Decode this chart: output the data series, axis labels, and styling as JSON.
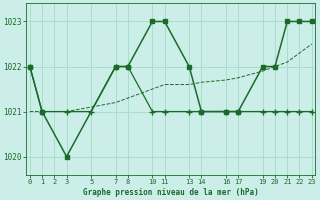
{
  "title": "Graphe pression niveau de la mer (hPa)",
  "background_color": "#cceee8",
  "grid_color": "#aaddcc",
  "line_color": "#1a6b2a",
  "ylim": [
    1019.6,
    1023.4
  ],
  "yticks": [
    1020,
    1021,
    1022,
    1023
  ],
  "xlim": [
    -0.3,
    23.3
  ],
  "xtick_positions": [
    0,
    1,
    2,
    3,
    5,
    7,
    8,
    10,
    11,
    13,
    14,
    16,
    17,
    19,
    20,
    21,
    22,
    23
  ],
  "xtick_labels": [
    "0",
    "1",
    "2",
    "3",
    "5",
    "7",
    "8",
    "10",
    "11",
    "13",
    "14",
    "16",
    "17",
    "19",
    "20",
    "21",
    "22",
    "23"
  ],
  "series1_x": [
    0,
    1,
    3,
    7,
    8,
    10,
    11,
    13,
    14,
    16,
    17,
    19,
    20,
    21,
    22,
    23
  ],
  "series1_y": [
    1022,
    1021,
    1020,
    1022,
    1022,
    1023,
    1023,
    1022,
    1021,
    1021,
    1021,
    1022,
    1022,
    1023,
    1023,
    1023
  ],
  "series2_x": [
    0,
    1,
    3,
    5,
    7,
    8,
    10,
    11,
    13,
    14,
    16,
    17,
    19,
    20,
    21,
    22,
    23
  ],
  "series2_y": [
    1022,
    1021,
    1021,
    1021,
    1022,
    1022,
    1021,
    1021,
    1021,
    1021,
    1021,
    1021,
    1021,
    1021,
    1021,
    1021,
    1021
  ],
  "series3_x": [
    0,
    3,
    5,
    7,
    8,
    10,
    11,
    13,
    14,
    16,
    17,
    19,
    20,
    21,
    22,
    23
  ],
  "series3_y": [
    1021,
    1021,
    1021.1,
    1021.2,
    1021.3,
    1021.5,
    1021.6,
    1021.6,
    1021.65,
    1021.7,
    1021.75,
    1021.9,
    1022.0,
    1022.1,
    1022.3,
    1022.5
  ]
}
